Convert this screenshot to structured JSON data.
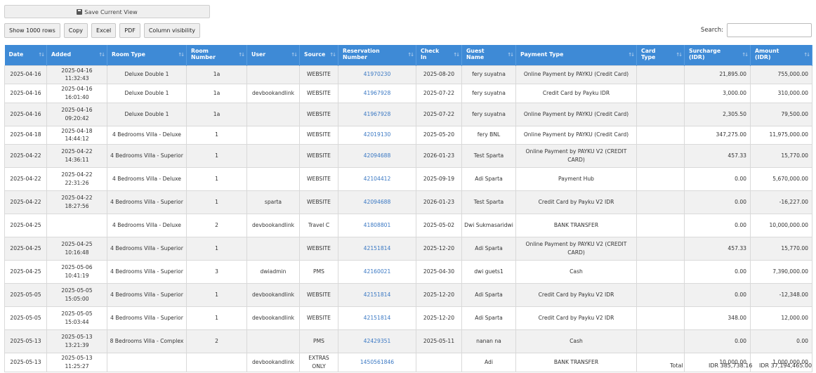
{
  "toolbar": {
    "save_view": "Save Current View",
    "buttons": [
      "Show 1000 rows",
      "Copy",
      "Excel",
      "PDF",
      "Column visibility"
    ]
  },
  "search": {
    "label": "Search:",
    "value": "",
    "placeholder": ""
  },
  "columns": [
    [
      "Date"
    ],
    [
      "Added"
    ],
    [
      "Room Type"
    ],
    [
      "Room",
      "Number"
    ],
    [
      "User"
    ],
    [
      "Source"
    ],
    [
      "Reservation",
      "Number"
    ],
    [
      "Check",
      "In"
    ],
    [
      "Guest",
      "Name"
    ],
    [
      "Payment Type"
    ],
    [
      "Card",
      "Type"
    ],
    [
      "Surcharge",
      "(IDR)"
    ],
    [
      "Amount",
      "(IDR)"
    ]
  ],
  "rows": [
    {
      "date": "2025-04-16",
      "added": "2025-04-16 11:32:43",
      "room_type": "Deluxe Double 1",
      "room_number": "1a",
      "user": "",
      "source": "WEBSITE",
      "reservation": "41970230",
      "check_in": "2025-08-20",
      "guest": "fery suyatna",
      "payment": "Online Payment by PAYKU (Credit Card)",
      "card": "",
      "surcharge": "21,895.00",
      "amount": "755,000.00"
    },
    {
      "date": "2025-04-16",
      "added": "2025-04-16 16:01:40",
      "room_type": "Deluxe Double 1",
      "room_number": "1a",
      "user": "devbookandlink",
      "source": "WEBSITE",
      "reservation": "41967928",
      "check_in": "2025-07-22",
      "guest": "fery suyatna",
      "payment": "Credit Card by Payku IDR",
      "card": "",
      "surcharge": "3,000.00",
      "amount": "310,000.00"
    },
    {
      "date": "2025-04-16",
      "added": "2025-04-16 09:20:42",
      "room_type": "Deluxe Double 1",
      "room_number": "1a",
      "user": "",
      "source": "WEBSITE",
      "reservation": "41967928",
      "check_in": "2025-07-22",
      "guest": "fery suyatna",
      "payment": "Online Payment by PAYKU (Credit Card)",
      "card": "",
      "surcharge": "2,305.50",
      "amount": "79,500.00"
    },
    {
      "date": "2025-04-18",
      "added": "2025-04-18 14:44:12",
      "room_type": "4 Bedrooms Villa - Deluxe",
      "room_number": "1",
      "user": "",
      "source": "WEBSITE",
      "reservation": "42019130",
      "check_in": "2025-05-20",
      "guest": "fery BNL",
      "payment": "Online Payment by PAYKU (Credit Card)",
      "card": "",
      "surcharge": "347,275.00",
      "amount": "11,975,000.00"
    },
    {
      "date": "2025-04-22",
      "added": "2025-04-22 14:36:11",
      "room_type": "4 Bedrooms Villa - Superior",
      "room_number": "1",
      "user": "",
      "source": "WEBSITE",
      "reservation": "42094688",
      "check_in": "2026-01-23",
      "guest": "Test Sparta",
      "payment": "Online Payment by PAYKU V2 (CREDIT CARD)",
      "card": "",
      "surcharge": "457.33",
      "amount": "15,770.00"
    },
    {
      "date": "2025-04-22",
      "added": "2025-04-22 22:31:26",
      "room_type": "4 Bedrooms Villa - Deluxe",
      "room_number": "1",
      "user": "",
      "source": "WEBSITE",
      "reservation": "42104412",
      "check_in": "2025-09-19",
      "guest": "Adi Sparta",
      "payment": "Payment Hub",
      "card": "",
      "surcharge": "0.00",
      "amount": "5,670,000.00"
    },
    {
      "date": "2025-04-22",
      "added": "2025-04-22 18:27:56",
      "room_type": "4 Bedrooms Villa - Superior",
      "room_number": "1",
      "user": "sparta",
      "source": "WEBSITE",
      "reservation": "42094688",
      "check_in": "2026-01-23",
      "guest": "Test Sparta",
      "payment": "Credit Card by Payku V2 IDR",
      "card": "",
      "surcharge": "0.00",
      "amount": "-16,227.00"
    },
    {
      "date": "2025-04-25",
      "added": "",
      "room_type": "4 Bedrooms Villa - Deluxe",
      "room_number": "2",
      "user": "devbookandlink",
      "source": "Travel C",
      "reservation": "41808801",
      "check_in": "2025-05-02",
      "guest": "Dwi Sukmasaridwi",
      "payment": "BANK TRANSFER",
      "card": "",
      "surcharge": "0.00",
      "amount": "10,000,000.00"
    },
    {
      "date": "2025-04-25",
      "added": "2025-04-25 10:16:48",
      "room_type": "4 Bedrooms Villa - Superior",
      "room_number": "1",
      "user": "",
      "source": "WEBSITE",
      "reservation": "42151814",
      "check_in": "2025-12-20",
      "guest": "Adi Sparta",
      "payment": "Online Payment by PAYKU V2 (CREDIT CARD)",
      "card": "",
      "surcharge": "457.33",
      "amount": "15,770.00"
    },
    {
      "date": "2025-04-25",
      "added": "2025-05-06 10:41:19",
      "room_type": "4 Bedrooms Villa - Superior",
      "room_number": "3",
      "user": "dwiadmin",
      "source": "PMS",
      "reservation": "42160021",
      "check_in": "2025-04-30",
      "guest": "dwi guets1",
      "payment": "Cash",
      "card": "",
      "surcharge": "0.00",
      "amount": "7,390,000.00"
    },
    {
      "date": "2025-05-05",
      "added": "2025-05-05 15:05:00",
      "room_type": "4 Bedrooms Villa - Superior",
      "room_number": "1",
      "user": "devbookandlink",
      "source": "WEBSITE",
      "reservation": "42151814",
      "check_in": "2025-12-20",
      "guest": "Adi Sparta",
      "payment": "Credit Card by Payku V2 IDR",
      "card": "",
      "surcharge": "0.00",
      "amount": "-12,348.00"
    },
    {
      "date": "2025-05-05",
      "added": "2025-05-05 15:03:44",
      "room_type": "4 Bedrooms Villa - Superior",
      "room_number": "1",
      "user": "devbookandlink",
      "source": "WEBSITE",
      "reservation": "42151814",
      "check_in": "2025-12-20",
      "guest": "Adi Sparta",
      "payment": "Credit Card by Payku V2 IDR",
      "card": "",
      "surcharge": "348.00",
      "amount": "12,000.00"
    },
    {
      "date": "2025-05-13",
      "added": "2025-05-13 13:21:39",
      "room_type": "8 Bedrooms Villa - Complex",
      "room_number": "2",
      "user": "",
      "source": "PMS",
      "reservation": "42429351",
      "check_in": "2025-05-11",
      "guest": "nanan na",
      "payment": "Cash",
      "card": "",
      "surcharge": "0.00",
      "amount": "0.00"
    },
    {
      "date": "2025-05-13",
      "added": "2025-05-13 11:25:27",
      "room_type": "",
      "room_number": "",
      "user": "devbookandlink",
      "source": "EXTRAS ONLY",
      "reservation": "1450561846",
      "check_in": "",
      "guest": "Adi",
      "payment": "BANK TRANSFER",
      "card": "",
      "surcharge": "10,000.00",
      "amount": "1,000,000.00"
    }
  ],
  "totals": {
    "label": "Total",
    "surcharge": "IDR 385,738.16",
    "amount": "IDR 37,194,465.00"
  }
}
